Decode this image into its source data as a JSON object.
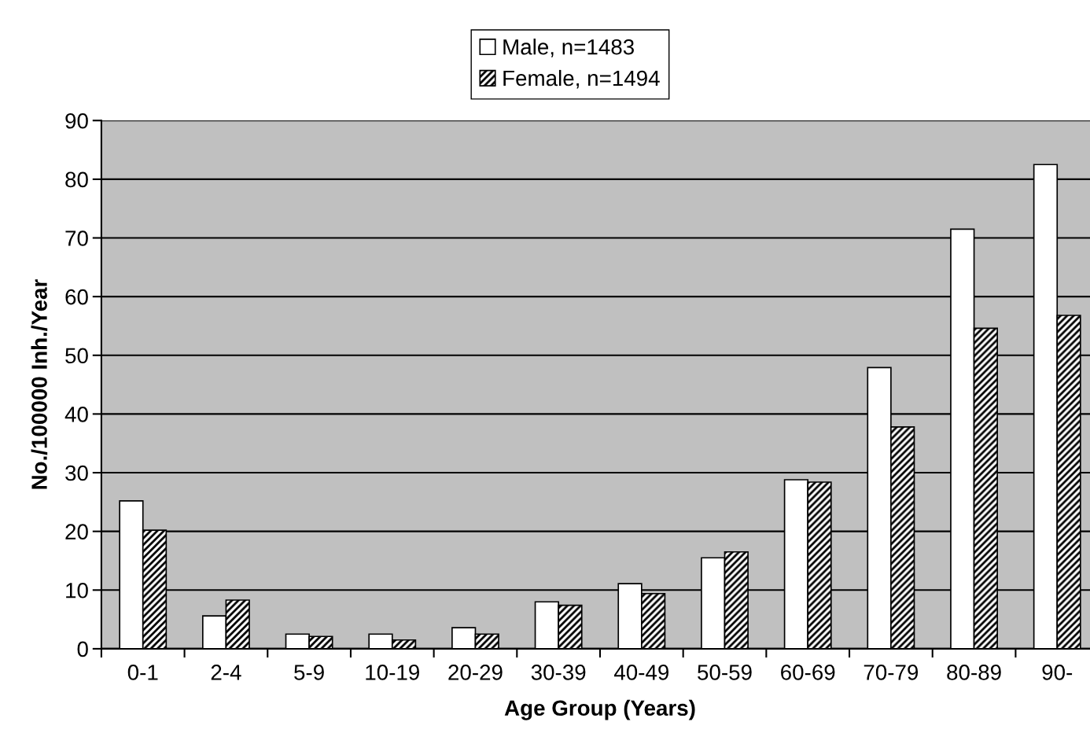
{
  "chart_data": {
    "type": "bar",
    "xlabel": "Age Group (Years)",
    "ylabel": "No./100000 Inh./Year",
    "categories": [
      "0-1",
      "2-4",
      "5-9",
      "10-19",
      "20-29",
      "30-39",
      "40-49",
      "50-59",
      "60-69",
      "70-79",
      "80-89",
      "90-"
    ],
    "series": [
      {
        "name": "Male, n=1483",
        "color": "#ffffff",
        "values": [
          25.2,
          5.6,
          2.5,
          2.5,
          3.6,
          8.0,
          11.1,
          15.5,
          28.8,
          47.9,
          71.5,
          82.5
        ]
      },
      {
        "name": "Female, n=1494",
        "color": "#000000",
        "values": [
          20.2,
          8.3,
          2.1,
          1.5,
          2.5,
          7.4,
          9.4,
          16.5,
          28.4,
          37.8,
          54.6,
          56.8
        ]
      }
    ],
    "ylim": [
      0,
      90
    ],
    "yticks": [
      0,
      10,
      20,
      30,
      40,
      50,
      60,
      70,
      80,
      90
    ],
    "grid": "y",
    "legend": "top"
  }
}
